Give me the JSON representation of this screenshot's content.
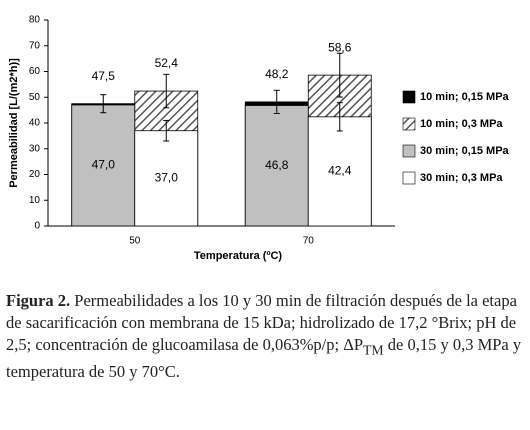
{
  "chart_data": {
    "type": "bar",
    "y_label": "Permeabilidad [L/(m2*h)]",
    "x_label": "Temperatura (ºC)",
    "categories": [
      "50",
      "70"
    ],
    "ylim": [
      0,
      80
    ],
    "yticks": [
      0,
      10,
      20,
      30,
      40,
      50,
      60,
      70,
      80
    ],
    "series": [
      {
        "name": "10 min; 0,15 MPa",
        "color": "#000000",
        "values": [
          47.5,
          48.2
        ],
        "value_labels": [
          "47,5",
          "48,2"
        ],
        "errors": [
          3.5,
          4.5
        ]
      },
      {
        "name": "10 min; 0,3 MPa",
        "color": "#555555",
        "pattern": "diagonal",
        "values": [
          52.4,
          58.6
        ],
        "value_labels": [
          "52,4",
          "58,6"
        ],
        "errors": [
          6.5,
          8.5
        ]
      },
      {
        "name": "30 min; 0,15 MPa",
        "color": "#c0c0c0",
        "values": [
          47.0,
          46.8
        ],
        "value_labels": [
          "47,0",
          "46,8"
        ]
      },
      {
        "name": "30 min; 0,3 MPa",
        "color": "#ffffff",
        "values": [
          37.0,
          42.4
        ],
        "value_labels": [
          "37,0",
          "42,4"
        ],
        "errors": [
          4,
          5.5
        ]
      }
    ]
  },
  "caption": {
    "label": "Figura 2.",
    "text_before": "Permeabilidades a los 10 y 30 min de filtración después de la etapa de sacarificación con membrana de 15 kDa; hidrolizado de 17,2 °Brix; pH de 2,5; concentración de glucoamilasa de 0,063%p/p; ΔP",
    "subscript": "TM",
    "text_after": " de 0,15 y 0,3 MPa y temperatura de 50 y 70°C."
  }
}
